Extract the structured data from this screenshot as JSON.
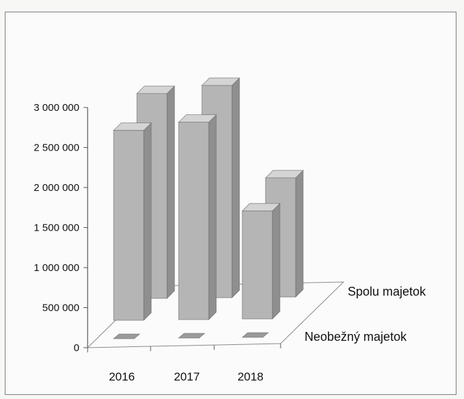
{
  "chart_data": {
    "type": "bar",
    "subtype": "3d-column-depth",
    "categories": [
      "2016",
      "2017",
      "2018"
    ],
    "series": [
      {
        "name": "Neobežný majetok",
        "values": [
          5000,
          5000,
          5000
        ]
      },
      {
        "name": "Spolu majetok",
        "values": [
          2750000,
          2850000,
          1600000
        ]
      }
    ],
    "y_ticks": [
      "0",
      "500 000",
      "1 000 000",
      "1 500 000",
      "2 000 000",
      "2 500 000",
      "3 000 000"
    ],
    "ylim": [
      0,
      3000000
    ],
    "colors": {
      "bar_front": "#b5b5b5",
      "bar_side": "#8f8f8f",
      "bar_top": "#d4d4d4",
      "axis": "#555555"
    }
  }
}
